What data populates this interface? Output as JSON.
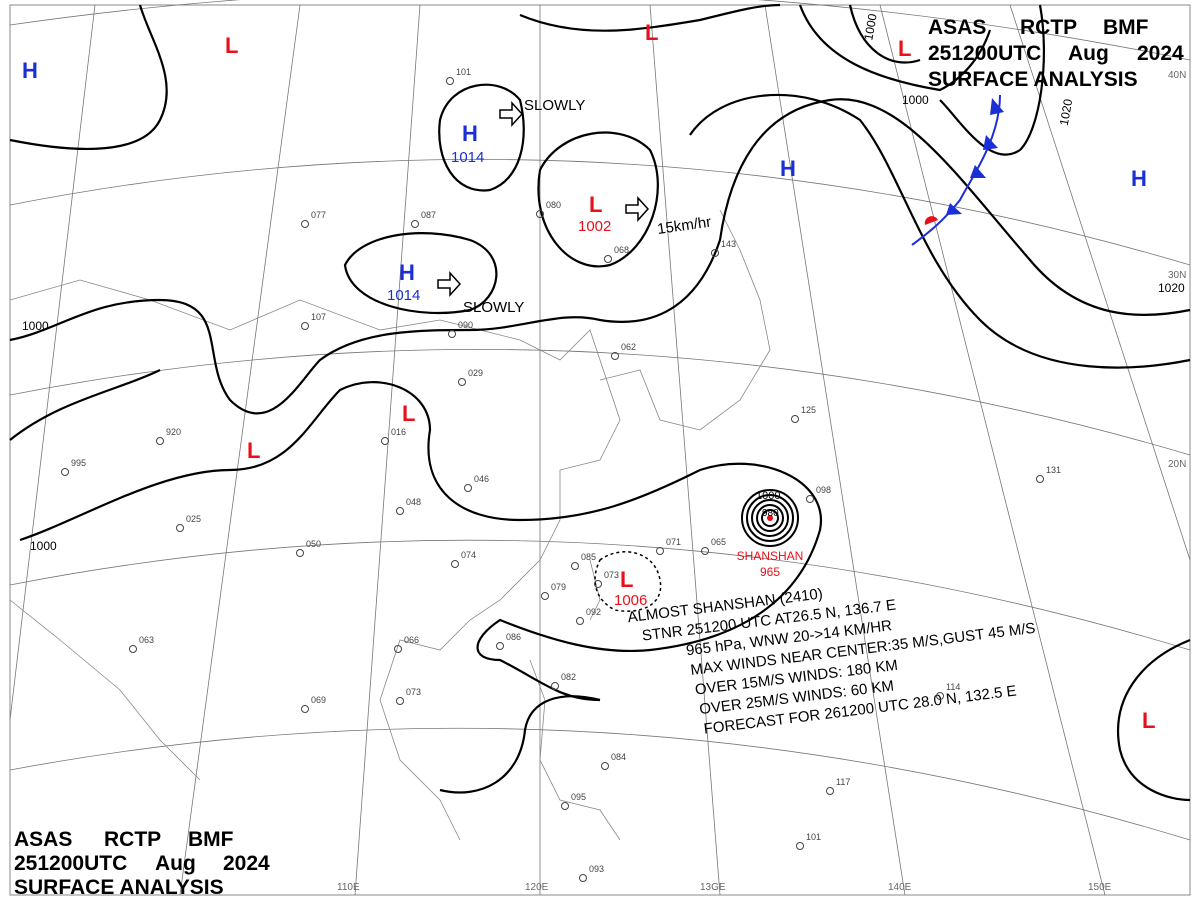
{
  "header": {
    "line1": [
      "ASAS",
      "RCTP",
      "BMF"
    ],
    "line2": [
      "251200UTC",
      "Aug",
      "2024"
    ],
    "line3": "SURFACE  ANALYSIS"
  },
  "longitude_labels": [
    "110E",
    "120E",
    "13GE",
    "140E",
    "150E"
  ],
  "latitude_labels": [
    "40N",
    "30N",
    "20N"
  ],
  "isobar_labels": [
    "1000",
    "1000",
    "1000",
    "1000",
    "1020",
    "1020"
  ],
  "colors": {
    "high": "#1a2fd6",
    "low": "#e8101a",
    "isobar": "#000000",
    "grid": "#777777",
    "cold_front": "#1a2fd6",
    "warm_front": "#e8101a"
  },
  "highs": [
    {
      "symbol": "H",
      "pressure": ""
    },
    {
      "symbol": "H",
      "pressure": "1014"
    },
    {
      "symbol": "H",
      "pressure": "1014"
    },
    {
      "symbol": "H",
      "pressure": ""
    },
    {
      "symbol": "H",
      "pressure": ""
    }
  ],
  "lows": [
    {
      "symbol": "L",
      "pressure": ""
    },
    {
      "symbol": "L",
      "pressure": ""
    },
    {
      "symbol": "L",
      "pressure": ""
    },
    {
      "symbol": "L",
      "pressure": "1002"
    },
    {
      "symbol": "L",
      "pressure": ""
    },
    {
      "symbol": "L",
      "pressure": ""
    },
    {
      "symbol": "L",
      "pressure": "1006"
    },
    {
      "symbol": "L",
      "pressure": ""
    }
  ],
  "movements": [
    "SLOWLY",
    "SLOWLY",
    "15km/hr"
  ],
  "typhoon": {
    "name": "SHANSHAN",
    "pressure": "965",
    "center_isobars": [
      "1000",
      "980"
    ],
    "bulletin": [
      "ALMOST  SHANSHAN  (2410)",
      "STNR 251200 UTC  AT26.5 N, 136.7 E",
      "965 hPa, WNW  20->14 KM/HR",
      "MAX WINDS NEAR CENTER:35 M/S,GUST 45 M/S",
      "OVER 15M/S WINDS: 180 KM",
      "OVER 25M/S WINDS: 60 KM",
      "FORECAST FOR 261200 UTC 28.0 N, 132.5 E"
    ]
  },
  "stations": [
    "101",
    "077",
    "087",
    "080",
    "068",
    "143",
    "090",
    "029",
    "016",
    "046",
    "048",
    "050",
    "074",
    "085",
    "073",
    "063",
    "066",
    "069",
    "073",
    "107",
    "095",
    "093",
    "098",
    "131",
    "125",
    "117",
    "101",
    "114",
    "995",
    "920",
    "025",
    "062",
    "071",
    "065",
    "079",
    "092",
    "084",
    "086",
    "082"
  ]
}
